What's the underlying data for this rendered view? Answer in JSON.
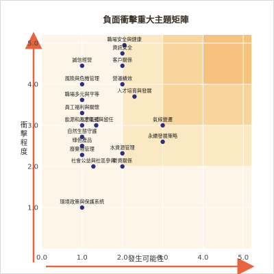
{
  "chart_data": {
    "type": "scatter",
    "title": "負面衝擊重大主題矩陣",
    "xlabel": "發生可能性",
    "ylabel": "衝擊程度",
    "xlim": [
      0,
      5.2
    ],
    "ylim": [
      0,
      5.2
    ],
    "x_ticks": [
      "0.0",
      "1.0",
      "2.0",
      "3.0",
      "4.0",
      "5.0"
    ],
    "y_ticks": [
      "1.0",
      "2.0",
      "3.0",
      "4.0",
      "5.0"
    ],
    "grid": true,
    "point_color": "#2e2f80",
    "arrow_color": "#e8643c",
    "zone_colors": {
      "low": "#fdf6e8",
      "mid_low": "#fbe9c4",
      "mid_high": "#f8d59c",
      "high": "#f6c27d"
    },
    "points": [
      {
        "label": "職場安全與健康",
        "x": 2.05,
        "y": 4.95
      },
      {
        "label": "資訊安全",
        "x": 2.0,
        "y": 4.75
      },
      {
        "label": "客戶關係",
        "x": 2.0,
        "y": 4.45
      },
      {
        "label": "誠信經營",
        "x": 1.0,
        "y": 4.45
      },
      {
        "label": "風險與危機管理",
        "x": 1.0,
        "y": 4.0
      },
      {
        "label": "營運績效",
        "x": 2.0,
        "y": 4.0
      },
      {
        "label": "人才培育與發展",
        "x": 2.3,
        "y": 3.7
      },
      {
        "label": "職場多元與平等",
        "x": 1.0,
        "y": 3.62
      },
      {
        "label": "員工福利與關懷",
        "x": 1.0,
        "y": 3.3
      },
      {
        "label": "能源和溫室氣體",
        "x": 1.0,
        "y": 3.0
      },
      {
        "label": "人才吸引與留任",
        "x": 1.35,
        "y": 3.0
      },
      {
        "label": "氣候變遷",
        "x": 3.0,
        "y": 3.0
      },
      {
        "label": "自然生態守護",
        "x": 1.0,
        "y": 2.72
      },
      {
        "label": "永續發展策略",
        "x": 3.0,
        "y": 2.6
      },
      {
        "label": "綠色產品",
        "x": 1.0,
        "y": 2.5
      },
      {
        "label": "水資源管理",
        "x": 2.0,
        "y": 2.32
      },
      {
        "label": "廢棄物管理",
        "x": 1.0,
        "y": 2.28
      },
      {
        "label": "社會公益與社區參與",
        "x": 1.28,
        "y": 2.0
      },
      {
        "label": "勞資關係",
        "x": 2.0,
        "y": 2.0
      },
      {
        "label": "環境政策與保護系統",
        "x": 1.0,
        "y": 1.0
      }
    ]
  }
}
